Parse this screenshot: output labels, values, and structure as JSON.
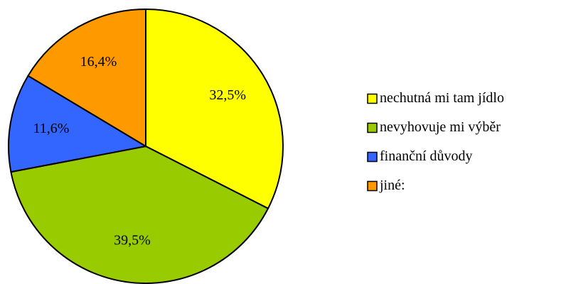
{
  "chart_data": {
    "type": "pie",
    "categories": [
      "nechutná mi tam jídlo",
      "nevyhovuje mi výběr",
      "finanční důvody",
      "jiné:"
    ],
    "values": [
      32.5,
      39.5,
      11.6,
      16.4
    ],
    "value_labels": [
      "32,5%",
      "39,5%",
      "11,6%",
      "16,4%"
    ],
    "colors": [
      "#ffff00",
      "#99cc00",
      "#3366ff",
      "#ff9900"
    ],
    "legend": "right"
  }
}
